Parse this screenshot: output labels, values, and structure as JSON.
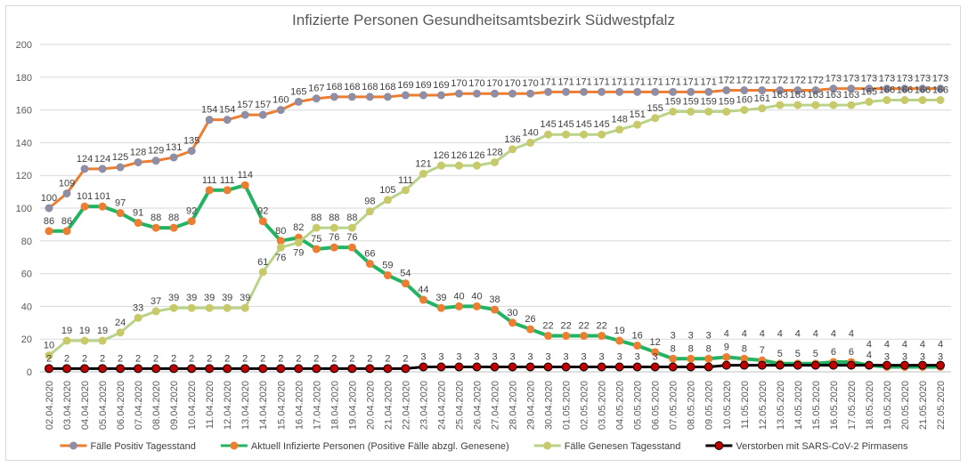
{
  "chart_data": {
    "type": "line",
    "title": "Infizierte Personen Gesundheitsamtsbezirk Südwestpfalz",
    "xlabel": "",
    "ylabel": "",
    "ylim": [
      0,
      200
    ],
    "yticks": [
      0,
      20,
      40,
      60,
      80,
      100,
      120,
      140,
      160,
      180,
      200
    ],
    "grid": true,
    "legend_position": "bottom",
    "categories": [
      "02.04.2020",
      "03.04.2020",
      "04.04.2020",
      "05.04.2020",
      "06.04.2020",
      "07.04.2020",
      "08.04.2020",
      "09.04.2020",
      "10.04.2020",
      "11.04.2020",
      "12.04.2020",
      "13.04.2020",
      "14.04.2020",
      "15.04.2020",
      "16.04.2020",
      "17.04.2020",
      "18.04.2020",
      "19.04.2020",
      "20.04.2020",
      "21.04.2020",
      "22.04.2020",
      "23.04.2020",
      "24.04.2020",
      "25.04.2020",
      "26.04.2020",
      "27.04.2020",
      "28.04.2020",
      "29.04.2020",
      "30.04.2020",
      "01.05.2020",
      "02.05.2020",
      "03.05.2020",
      "04.05.2020",
      "05.05.2020",
      "06.05.2020",
      "07.05.2020",
      "08.05.2020",
      "09.05.2020",
      "10.05.2020",
      "11.05.2020",
      "12.05.2020",
      "13.05.2020",
      "14.05.2020",
      "15.05.2020",
      "16.05.2020",
      "17.05.2020",
      "18.05.2020",
      "19.05.2020",
      "20.05.2020",
      "21.05.2020",
      "22.05.2020"
    ],
    "series": [
      {
        "name": "Fälle Positiv Tagesstand",
        "line_color": "#ED7D31",
        "marker_color": "#8E8FA6",
        "values": [
          100,
          109,
          124,
          124,
          125,
          128,
          129,
          131,
          135,
          154,
          154,
          157,
          157,
          160,
          165,
          167,
          168,
          168,
          168,
          168,
          169,
          169,
          169,
          170,
          170,
          170,
          170,
          170,
          171,
          171,
          171,
          171,
          171,
          171,
          171,
          171,
          171,
          171,
          172,
          172,
          172,
          172,
          172,
          172,
          173,
          173,
          173,
          173,
          173,
          173,
          173
        ]
      },
      {
        "name": "Aktuell Infizierte Personen (Positive Fälle abzgl. Genesene)",
        "line_color": "#22B462",
        "marker_color": "#ED7D31",
        "values": [
          86,
          86,
          101,
          101,
          97,
          91,
          88,
          88,
          92,
          111,
          111,
          114,
          92,
          80,
          82,
          75,
          76,
          76,
          66,
          59,
          54,
          44,
          39,
          40,
          40,
          38,
          30,
          26,
          22,
          22,
          22,
          22,
          19,
          16,
          12,
          8,
          8,
          8,
          9,
          8,
          7,
          5,
          5,
          5,
          6,
          6,
          4,
          3,
          3,
          3,
          3
        ]
      },
      {
        "name": "Fälle Genesen Tagesstand",
        "line_color": "#B9D48A",
        "marker_color": "#C8CA6A",
        "values": [
          10,
          19,
          19,
          19,
          24,
          33,
          37,
          39,
          39,
          39,
          39,
          39,
          61,
          76,
          79,
          88,
          88,
          88,
          98,
          105,
          111,
          121,
          126,
          126,
          126,
          128,
          136,
          140,
          145,
          145,
          145,
          145,
          148,
          151,
          155,
          159,
          159,
          159,
          159,
          160,
          161,
          163,
          163,
          163,
          163,
          163,
          165,
          166,
          166,
          166,
          166
        ]
      },
      {
        "name": "Verstorben mit SARS-CoV-2 Pirmasens",
        "line_color": "#000000",
        "marker_color": "#C00000",
        "values": [
          2,
          2,
          2,
          2,
          2,
          2,
          2,
          2,
          2,
          2,
          2,
          2,
          2,
          2,
          2,
          2,
          2,
          2,
          2,
          2,
          2,
          3,
          3,
          3,
          3,
          3,
          3,
          3,
          3,
          3,
          3,
          3,
          3,
          3,
          3,
          3,
          3,
          3,
          4,
          4,
          4,
          4,
          4,
          4,
          4,
          4,
          4,
          4,
          4,
          4,
          4
        ]
      }
    ]
  }
}
